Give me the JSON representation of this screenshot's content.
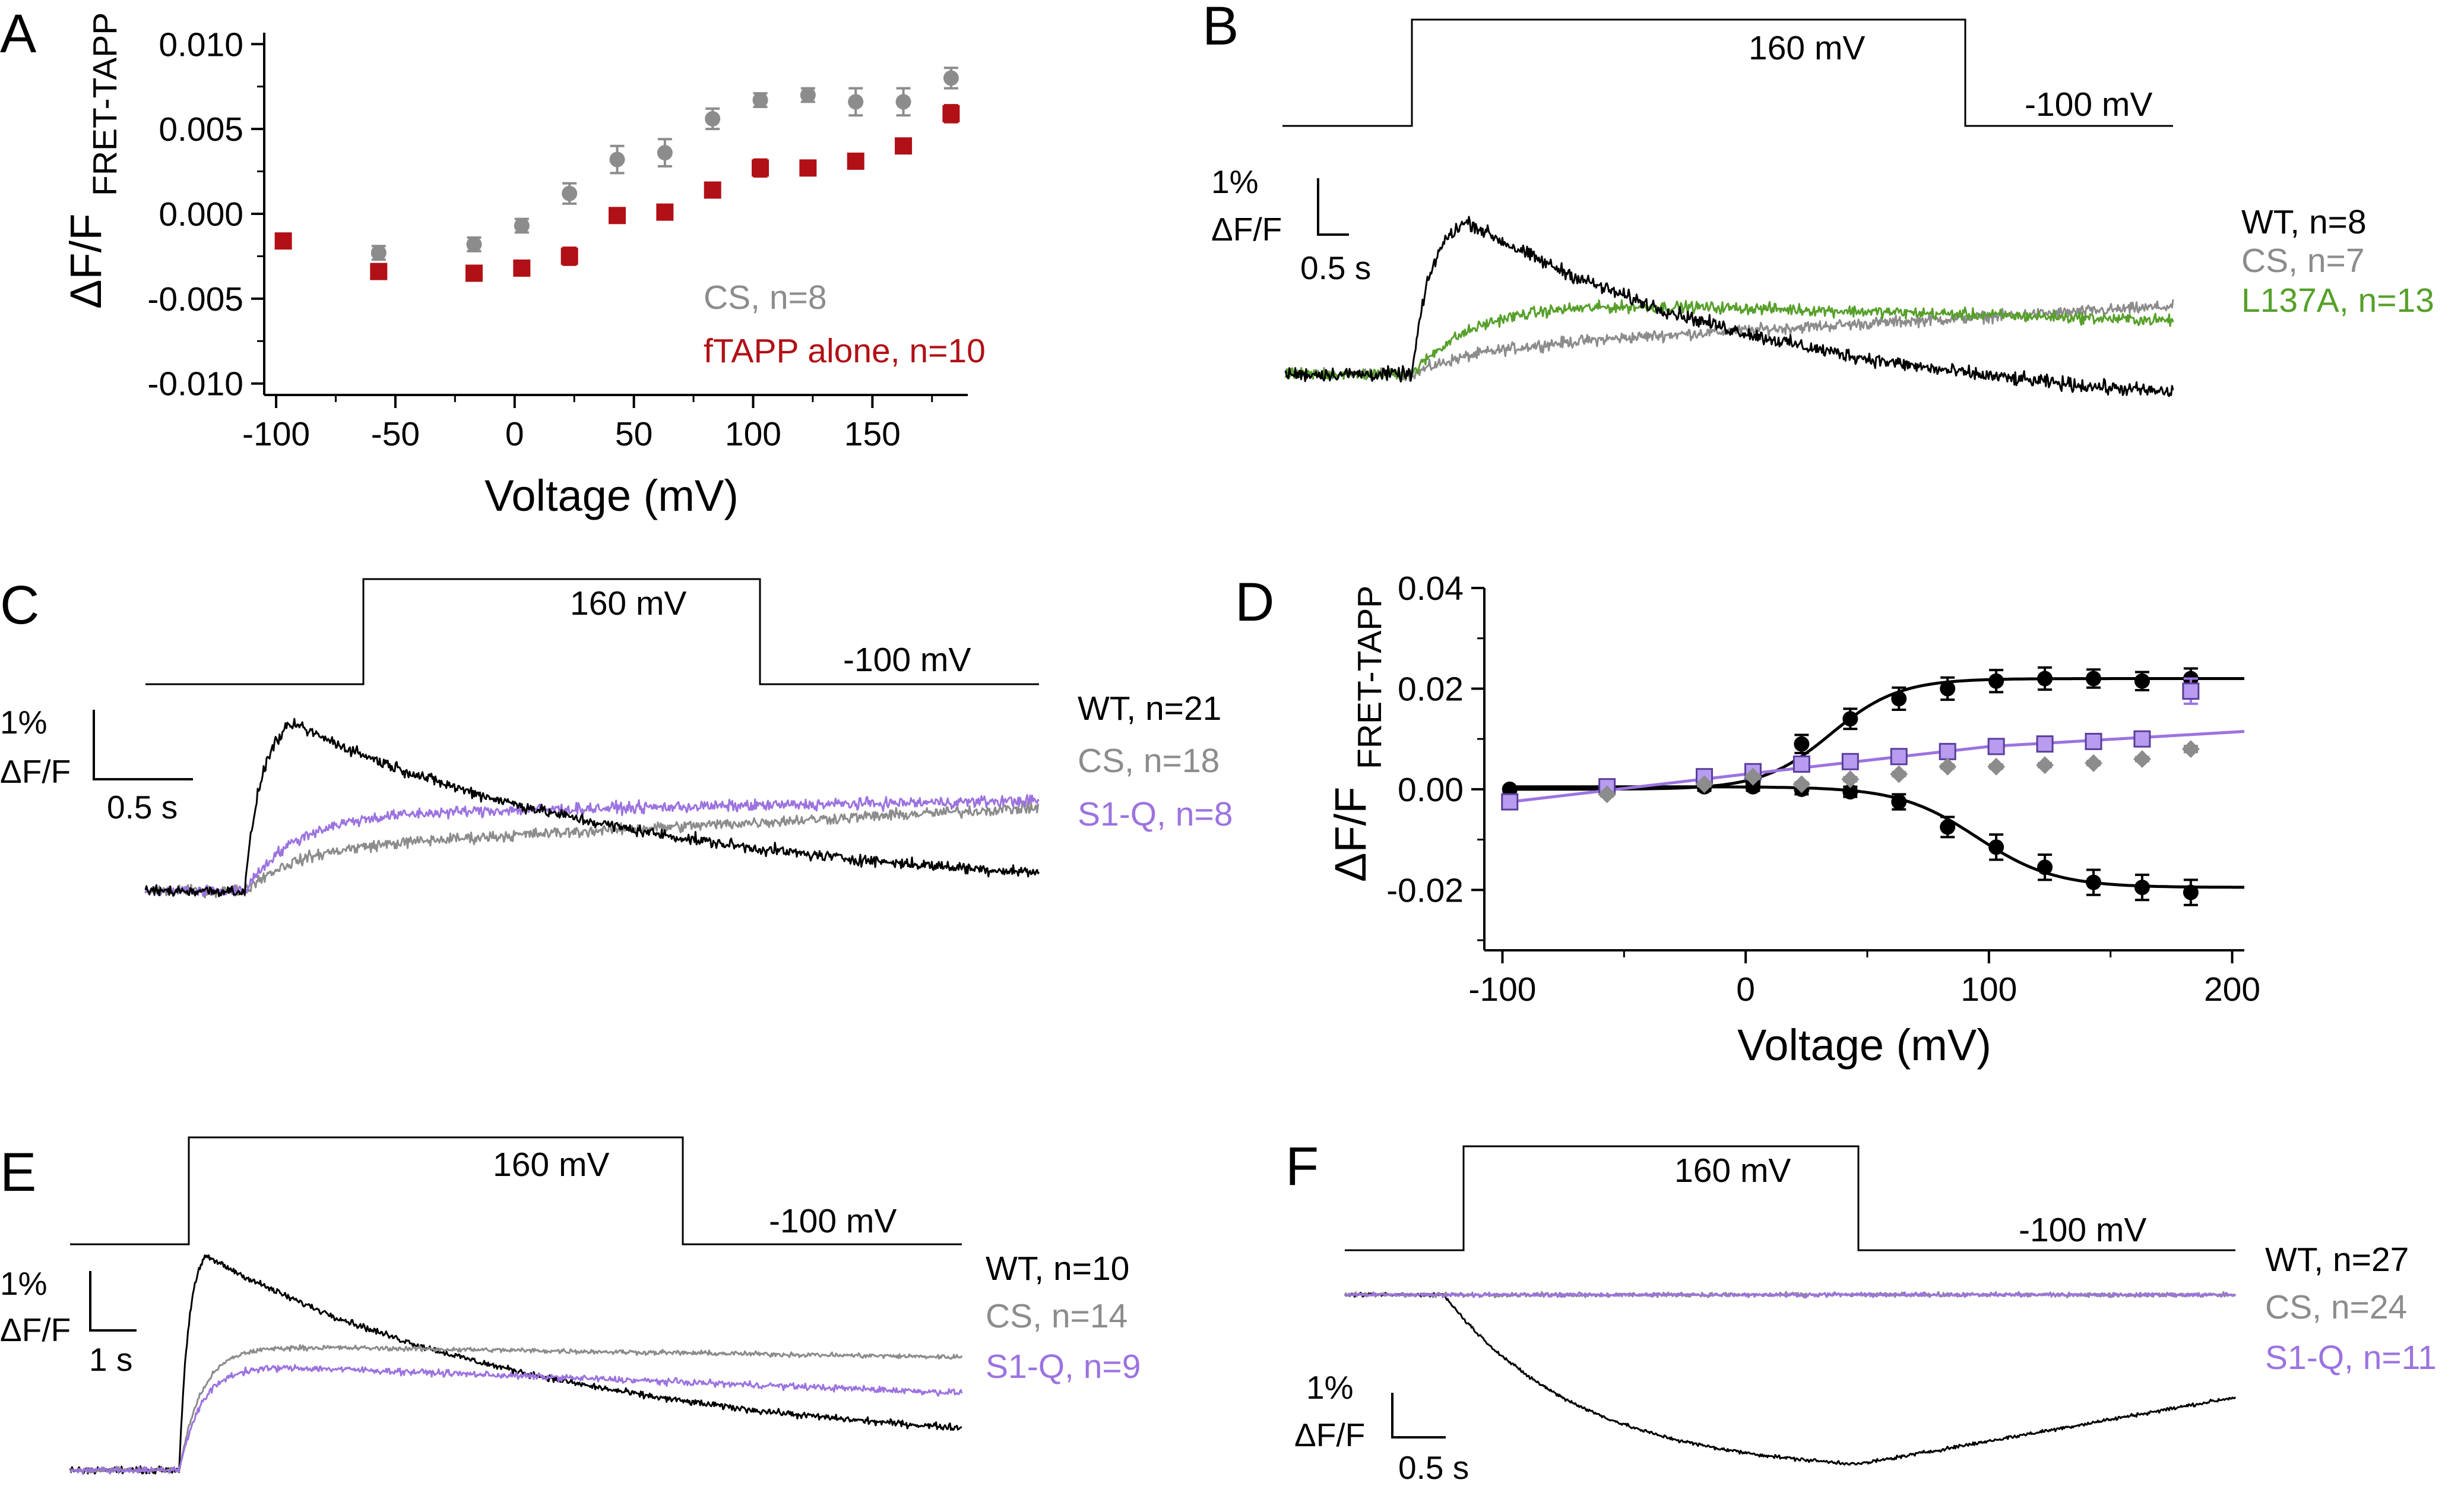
{
  "colors": {
    "black": "#000000",
    "gray": "#8c8c8c",
    "red": "#b11016",
    "green": "#56a02a",
    "purple": "#9c73e0"
  },
  "panels": {
    "A": {
      "letter": "A",
      "ylabel_main": "ΔF/F",
      "ylabel_sub": "FRET-TAPP",
      "xlabel": "Voltage (mV)",
      "xticks": [
        "-100",
        "-50",
        "0",
        "50",
        "100",
        "150"
      ],
      "yticks": [
        "0.010",
        "0.005",
        "0.000",
        "-0.005",
        "-0.010"
      ],
      "legend": [
        {
          "text": "CS, n=8",
          "color": "#8c8c8c"
        },
        {
          "text": "fTAPP alone, n=10",
          "color": "#b11016"
        }
      ]
    },
    "B": {
      "letter": "B",
      "protocol_step": "160 mV",
      "protocol_hold": "-100 mV",
      "scale_y": "1%",
      "scale_y2": "ΔF/F",
      "scale_x": "0.5 s",
      "legend": [
        {
          "text": "WT, n=8",
          "color": "#000000"
        },
        {
          "text": "CS, n=7",
          "color": "#8c8c8c"
        },
        {
          "text": "L137A, n=13",
          "color": "#56a02a"
        }
      ]
    },
    "C": {
      "letter": "C",
      "protocol_step": "160 mV",
      "protocol_hold": "-100 mV",
      "scale_y": "1%",
      "scale_y2": "ΔF/F",
      "scale_x": "0.5 s",
      "legend": [
        {
          "text": "WT, n=21",
          "color": "#000000"
        },
        {
          "text": "CS, n=18",
          "color": "#8c8c8c"
        },
        {
          "text": "S1-Q, n=8",
          "color": "#9c73e0"
        }
      ]
    },
    "D": {
      "letter": "D",
      "ylabel_main": "ΔF/F",
      "ylabel_sub": "FRET-TAPP",
      "xlabel": "Voltage (mV)",
      "xticks": [
        "-100",
        "0",
        "100",
        "200"
      ],
      "yticks": [
        "0.04",
        "0.02",
        "0.00",
        "-0.02"
      ]
    },
    "E": {
      "letter": "E",
      "protocol_step": "160 mV",
      "protocol_hold": "-100 mV",
      "scale_y": "1%",
      "scale_y2": "ΔF/F",
      "scale_x": "1 s",
      "legend": [
        {
          "text": "WT, n=10",
          "color": "#000000"
        },
        {
          "text": "CS, n=14",
          "color": "#8c8c8c"
        },
        {
          "text": "S1-Q, n=9",
          "color": "#9c73e0"
        }
      ]
    },
    "F": {
      "letter": "F",
      "protocol_step": "160 mV",
      "protocol_hold": "-100 mV",
      "scale_y": "1%",
      "scale_y2": "ΔF/F",
      "scale_x": "0.5 s",
      "legend": [
        {
          "text": "WT, n=27",
          "color": "#000000"
        },
        {
          "text": "CS, n=24",
          "color": "#8c8c8c"
        },
        {
          "text": "S1-Q, n=11",
          "color": "#9c73e0"
        }
      ]
    }
  },
  "chart_data": [
    {
      "panel": "A",
      "type": "scatter",
      "xlabel": "Voltage (mV)",
      "ylabel": "ΔF/F FRET-TAPP",
      "xlim": [
        -105,
        190
      ],
      "ylim": [
        -0.0105,
        0.0105
      ],
      "series": [
        {
          "name": "CS, n=8",
          "color": "#8c8c8c",
          "marker": "circle",
          "x": [
            -57,
            -17,
            3,
            23,
            43,
            63,
            83,
            103,
            123,
            143,
            163,
            183
          ],
          "y": [
            -0.0023,
            -0.0018,
            -0.0007,
            0.0012,
            0.0032,
            0.0036,
            0.0056,
            0.0067,
            0.007,
            0.0066,
            0.0066,
            0.008
          ],
          "err": [
            0.0004,
            0.0004,
            0.0004,
            0.0006,
            0.0008,
            0.0008,
            0.0006,
            0.0004,
            0.0004,
            0.0008,
            0.0008,
            0.0006
          ]
        },
        {
          "name": "fTAPP alone, n=10",
          "color": "#b11016",
          "marker": "square",
          "x": [
            -97,
            -57,
            -17,
            3,
            23,
            43,
            63,
            83,
            103,
            123,
            143,
            163,
            183
          ],
          "y": [
            -0.0016,
            -0.0034,
            -0.0035,
            -0.0032,
            -0.0025,
            -0.0001,
            0.0001,
            0.0014,
            0.0027,
            0.0027,
            0.0031,
            0.004,
            0.0059
          ],
          "err": [
            0.0002,
            0.0003,
            0.0004,
            0.0003,
            0.0005,
            0.0002,
            0.0002,
            0.0002,
            0.0005,
            0.0003,
            0.0004,
            0.0003,
            0.0005
          ]
        }
      ]
    },
    {
      "panel": "B",
      "type": "line",
      "description_units": "time (s) vs ΔF/F (%)",
      "step": {
        "on_s": 0.5,
        "off_s": 3.0,
        "total_s": 3.5
      },
      "series": [
        {
          "name": "WT, n=8",
          "color": "#000000",
          "baseline": 0.0,
          "peak": 2.7,
          "peak_t": 0.72,
          "end": -0.7,
          "noise": 0.18
        },
        {
          "name": "CS, n=7",
          "color": "#8c8c8c",
          "baseline": 0.0,
          "plateau": 0.45,
          "end": 1.2,
          "noise": 0.15
        },
        {
          "name": "L137A, n=13",
          "color": "#56a02a",
          "baseline": 0.0,
          "plateau": 1.35,
          "end": 0.95,
          "noise": 0.15
        }
      ]
    },
    {
      "panel": "C",
      "type": "line",
      "description_units": "time (s) vs ΔF/F (%)",
      "step": {
        "on_s": 0.5,
        "off_s": 2.5,
        "total_s": 4.5
      },
      "series": [
        {
          "name": "WT, n=21",
          "color": "#000000",
          "baseline": 0.0,
          "peak": 2.4,
          "peak_t": 0.75,
          "end": 0.0,
          "noise": 0.12
        },
        {
          "name": "CS, n=18",
          "color": "#8c8c8c",
          "baseline": 0.0,
          "plateau": 0.6,
          "end": 1.2,
          "noise": 0.12
        },
        {
          "name": "S1-Q, n=8",
          "color": "#9c73e0",
          "baseline": 0.0,
          "plateau": 1.1,
          "end": 1.3,
          "noise": 0.12
        }
      ]
    },
    {
      "panel": "D",
      "type": "scatter",
      "xlabel": "Voltage (mV)",
      "ylabel": "ΔF/F FRET-TAPP",
      "xlim": [
        -105,
        205
      ],
      "ylim": [
        -0.032,
        0.04
      ],
      "series": [
        {
          "color": "#000000",
          "marker": "circle",
          "x": [
            -97,
            -57,
            -17,
            3,
            23,
            43,
            63,
            83,
            103,
            123,
            143,
            163,
            183
          ],
          "y": [
            0.0,
            0.0,
            0.0005,
            0.0015,
            0.009,
            0.014,
            0.018,
            0.02,
            0.0215,
            0.022,
            0.022,
            0.0215,
            0.022
          ],
          "err": [
            0.0005,
            0.0005,
            0.0008,
            0.001,
            0.0018,
            0.002,
            0.0022,
            0.0022,
            0.0022,
            0.0022,
            0.0018,
            0.0018,
            0.002
          ]
        },
        {
          "color": "#000000",
          "marker": "circle",
          "x": [
            3,
            23,
            43,
            63,
            83,
            103,
            123,
            143,
            163,
            183
          ],
          "y": [
            0.0005,
            0.0,
            -0.0005,
            -0.0025,
            -0.0075,
            -0.0115,
            -0.0155,
            -0.0185,
            -0.0195,
            -0.0205
          ],
          "err": [
            0.0008,
            0.001,
            0.001,
            0.0015,
            0.002,
            0.0025,
            0.0025,
            0.0025,
            0.0025,
            0.0025
          ]
        },
        {
          "color": "#9c73e0",
          "marker": "square",
          "x": [
            -97,
            -57,
            -17,
            3,
            23,
            43,
            63,
            83,
            103,
            123,
            143,
            163,
            183
          ],
          "y": [
            -0.0025,
            0.0005,
            0.0025,
            0.0035,
            0.005,
            0.0055,
            0.0065,
            0.0075,
            0.0085,
            0.009,
            0.0095,
            0.01,
            0.0195
          ],
          "err": [
            0.0008,
            0.0005,
            0.0005,
            0.0008,
            0.0008,
            0.0008,
            0.0008,
            0.001,
            0.001,
            0.001,
            0.001,
            0.001,
            0.0025
          ]
        },
        {
          "color": "#8c8c8c",
          "marker": "diamond",
          "x": [
            -57,
            -17,
            3,
            23,
            43,
            63,
            83,
            103,
            123,
            143,
            163,
            183
          ],
          "y": [
            -0.001,
            0.001,
            0.0025,
            0.001,
            0.002,
            0.003,
            0.0045,
            0.0045,
            0.0048,
            0.0052,
            0.006,
            0.008
          ],
          "err": [
            0.0004,
            0.0004,
            0.0004,
            0.0004,
            0.0004,
            0.0004,
            0.0004,
            0.0004,
            0.0004,
            0.0004,
            0.0004,
            0.0006
          ]
        }
      ],
      "fits": [
        {
          "color": "#000000",
          "type": "boltzmann",
          "bottom": 0.0,
          "top": 0.022,
          "v_half": 35,
          "slope": 14
        },
        {
          "color": "#000000",
          "type": "boltzmann",
          "bottom": 0.0005,
          "top": -0.0195,
          "v_half": 95,
          "slope": 16
        },
        {
          "color": "#9c73e0",
          "type": "linear-ish",
          "points": [
            [
              -97,
              -0.0025
            ],
            [
              0,
              0.003
            ],
            [
              100,
              0.0085
            ],
            [
              205,
              0.0115
            ]
          ]
        }
      ]
    },
    {
      "panel": "E",
      "type": "line",
      "description_units": "time (s) vs ΔF/F (%)",
      "step": {
        "on_s": 1.2,
        "off_s": 6.6,
        "total_s": 9.8
      },
      "series": [
        {
          "name": "WT, n=10",
          "color": "#000000",
          "baseline": 0.0,
          "peak": 3.6,
          "peak_t": 1.5,
          "end": 0.35,
          "noise": 0.08
        },
        {
          "name": "CS, n=14",
          "color": "#8c8c8c",
          "baseline": 0.0,
          "plateau": 2.1,
          "end": 1.9,
          "noise": 0.06
        },
        {
          "name": "S1-Q, n=9",
          "color": "#9c73e0",
          "baseline": 0.0,
          "plateau": 1.8,
          "end": 1.3,
          "noise": 0.08
        }
      ]
    },
    {
      "panel": "F",
      "type": "line",
      "description_units": "time (s) vs ΔF/F (%)",
      "step": {
        "on_s": 0.5,
        "off_s": 2.5,
        "total_s": 4.5
      },
      "series": [
        {
          "name": "WT, n=27",
          "color": "#000000",
          "baseline": 0.0,
          "trough": -3.8,
          "trough_t": 2.6,
          "end": -2.3,
          "noise": 0.06
        },
        {
          "name": "CS, n=24",
          "color": "#8c8c8c",
          "baseline": 0.0,
          "plateau": 0.0,
          "end": 0.0,
          "noise": 0.07
        },
        {
          "name": "S1-Q, n=11",
          "color": "#9c73e0",
          "baseline": 0.0,
          "plateau": 0.0,
          "end": 0.0,
          "noise": 0.07
        }
      ]
    }
  ]
}
